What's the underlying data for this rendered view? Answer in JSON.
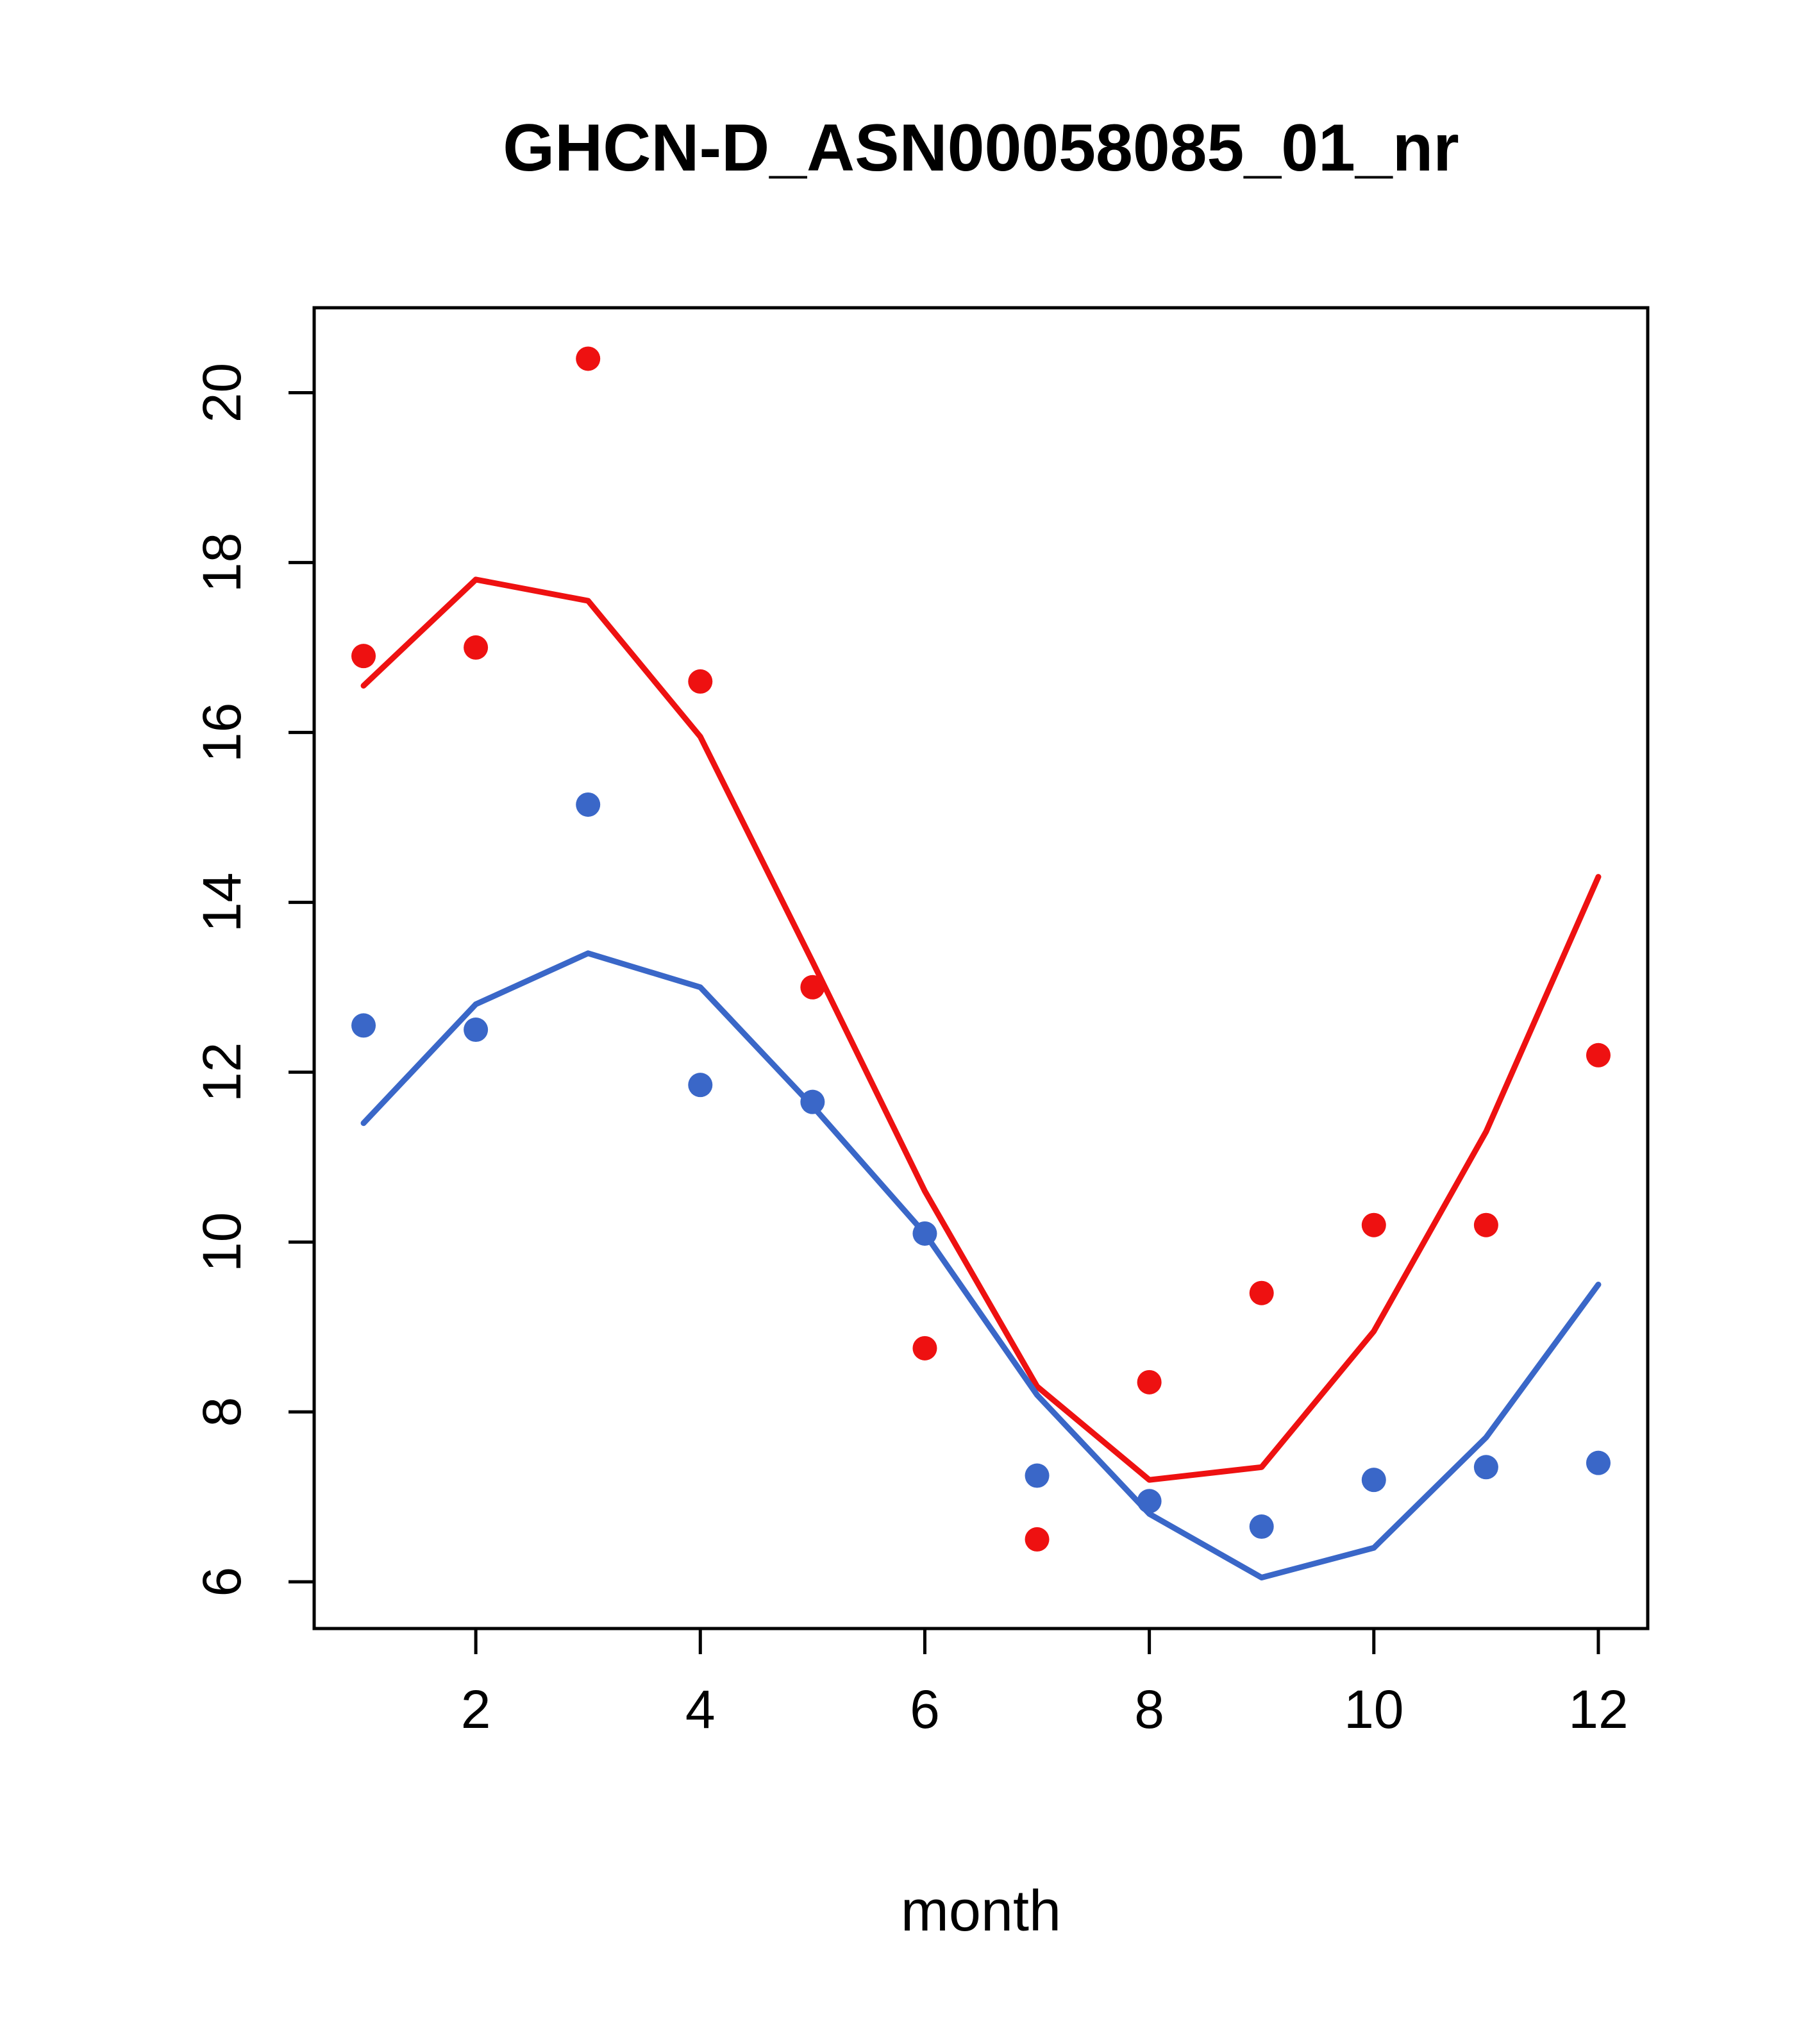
{
  "page": {
    "title": "GHCN-D_ASN00058085_01_nr"
  },
  "chart_data": {
    "type": "line",
    "title": "GHCN-D_ASN00058085_01_nr",
    "xlabel": "month",
    "ylabel": "",
    "x": [
      1,
      2,
      3,
      4,
      5,
      6,
      7,
      8,
      9,
      10,
      11,
      12
    ],
    "xlim": [
      0.56,
      12.44
    ],
    "ylim": [
      5.45,
      21.0
    ],
    "x_ticks": [
      2,
      4,
      6,
      8,
      10,
      12
    ],
    "y_ticks": [
      6,
      8,
      10,
      12,
      14,
      16,
      18,
      20
    ],
    "grid": false,
    "legend_position": "none",
    "colors": {
      "red_series": "#ee1111",
      "blue_series": "#3a67c8",
      "axis": "#000000",
      "background": "#ffffff"
    },
    "series": [
      {
        "name": "red-points",
        "kind": "points",
        "color": "#ee1111",
        "values": [
          16.9,
          17.0,
          20.4,
          16.6,
          13.0,
          8.75,
          6.5,
          8.35,
          9.4,
          10.2,
          10.2,
          12.2
        ]
      },
      {
        "name": "red-line",
        "kind": "line",
        "color": "#ee1111",
        "values": [
          16.55,
          17.8,
          17.55,
          15.95,
          13.3,
          10.6,
          8.3,
          7.2,
          7.35,
          8.95,
          11.3,
          14.3
        ]
      },
      {
        "name": "blue-points",
        "kind": "points",
        "color": "#3a67c8",
        "values": [
          12.55,
          12.5,
          15.15,
          11.85,
          11.65,
          10.1,
          7.25,
          6.95,
          6.65,
          7.2,
          7.35,
          7.4
        ]
      },
      {
        "name": "blue-line",
        "kind": "line",
        "color": "#3a67c8",
        "values": [
          11.4,
          12.8,
          13.4,
          13.0,
          11.6,
          10.1,
          8.2,
          6.8,
          6.05,
          6.4,
          7.7,
          9.5
        ]
      }
    ]
  }
}
